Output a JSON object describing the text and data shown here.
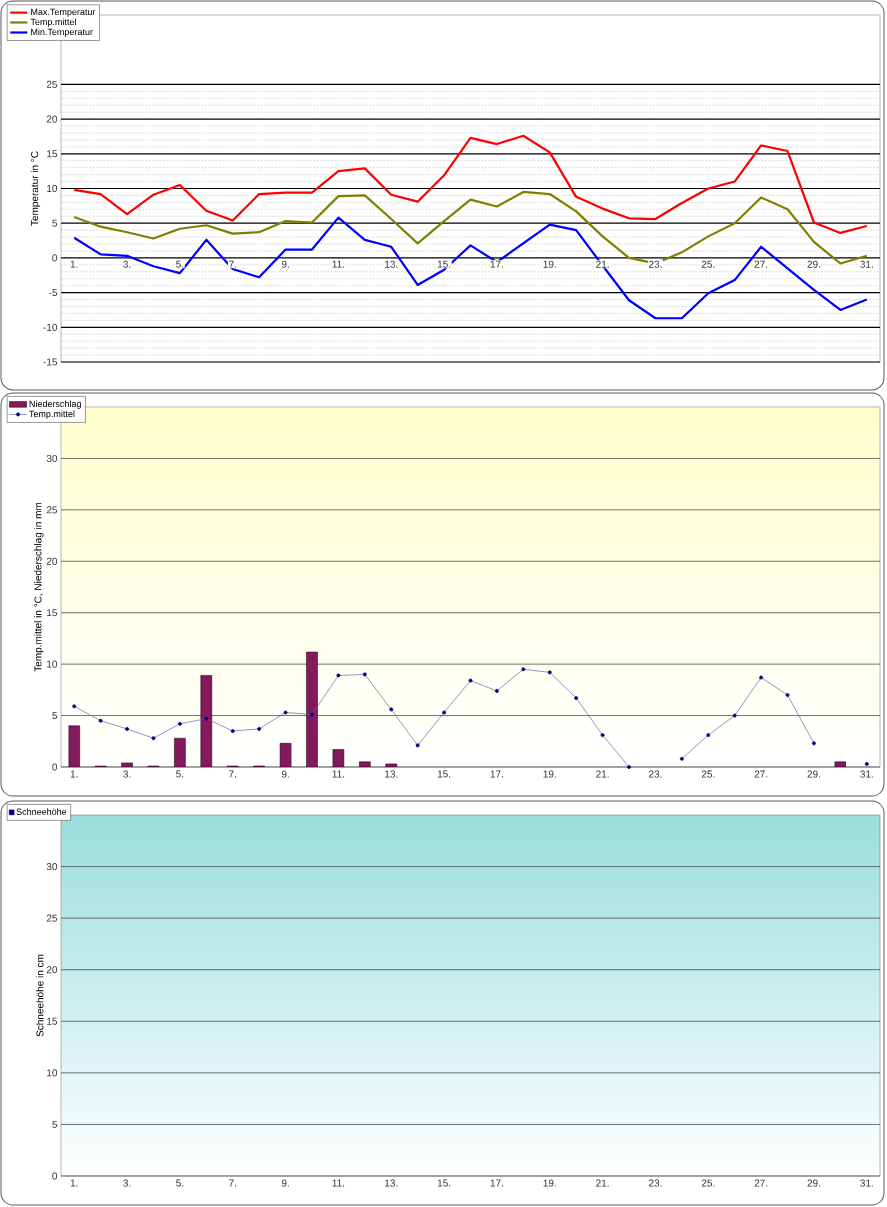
{
  "chart_data": [
    {
      "type": "line",
      "ylabel": "Temperatur  in °C",
      "categories": [
        "1.",
        null,
        "3.",
        null,
        "5.",
        null,
        "7.",
        null,
        "9.",
        null,
        "11.",
        null,
        "13.",
        null,
        "15.",
        null,
        "17.",
        null,
        "19.",
        null,
        "21.",
        null,
        "23.",
        null,
        "25.",
        null,
        "27.",
        null,
        "29.",
        null,
        "31."
      ],
      "ylim": [
        -15,
        35
      ],
      "yticks": [
        -15,
        -10,
        -5,
        0,
        5,
        10,
        15,
        20,
        25
      ],
      "grid": "y",
      "legend": "top left",
      "marker": "none",
      "series": [
        {
          "name": "Max.Temperatur",
          "color": "#ff0000",
          "values": [
            9.8,
            9.2,
            6.3,
            9.1,
            10.5,
            6.8,
            5.4,
            9.2,
            9.4,
            9.4,
            12.5,
            12.9,
            9.1,
            8.1,
            11.9,
            17.3,
            16.4,
            17.6,
            15.2,
            8.8,
            7.1,
            5.7,
            5.6,
            7.9,
            10.0,
            11.0,
            16.2,
            15.4,
            5.1,
            3.6,
            4.6
          ]
        },
        {
          "name": "Temp.mittel",
          "color": "#808000",
          "values": [
            5.9,
            4.5,
            3.7,
            2.8,
            4.2,
            4.7,
            3.5,
            3.7,
            5.3,
            5.1,
            8.9,
            9.0,
            5.6,
            2.1,
            5.3,
            8.4,
            7.4,
            9.5,
            9.2,
            6.7,
            3.1,
            0.0,
            -0.8,
            0.8,
            3.1,
            5.0,
            8.7,
            7.0,
            2.3,
            -0.8,
            0.3
          ]
        },
        {
          "name": "Min.Temperatur",
          "color": "#0000ff",
          "values": [
            2.9,
            0.5,
            0.3,
            -1.2,
            -2.2,
            2.6,
            -1.6,
            -2.8,
            1.2,
            1.2,
            5.8,
            2.6,
            1.6,
            -3.9,
            -1.7,
            1.8,
            -0.6,
            2.1,
            4.8,
            4.0,
            -1.1,
            -6.1,
            -8.7,
            -8.7,
            -5.1,
            -3.2,
            1.6,
            -1.5,
            -4.6,
            -7.5,
            -6.0
          ]
        }
      ]
    },
    {
      "type": "bar",
      "ylabel": "Temp.mittel  in °C, Niederschlag in mm",
      "categories": [
        "1.",
        null,
        "3.",
        null,
        "5.",
        null,
        "7.",
        null,
        "9.",
        null,
        "11.",
        null,
        "13.",
        null,
        "15.",
        null,
        "17.",
        null,
        "19.",
        null,
        "21.",
        null,
        "23.",
        null,
        "25.",
        null,
        "27.",
        null,
        "29.",
        null,
        "31."
      ],
      "ylim": [
        0,
        35
      ],
      "yticks": [
        0,
        5,
        10,
        15,
        20,
        25,
        30
      ],
      "grid": "y",
      "legend": "top left",
      "series": [
        {
          "name": "Niederschlag",
          "type": "bar",
          "color": "#85195e",
          "values": [
            4.0,
            0.1,
            0.4,
            0.1,
            2.8,
            8.9,
            0.1,
            0.1,
            2.3,
            11.2,
            1.7,
            0.5,
            0.3,
            null,
            null,
            null,
            null,
            null,
            null,
            null,
            null,
            null,
            null,
            null,
            null,
            null,
            null,
            null,
            null,
            0.5,
            null
          ]
        },
        {
          "name": "Temp.mittel",
          "type": "line",
          "color": "#000080",
          "marker": "circle",
          "values": [
            5.9,
            4.5,
            3.7,
            2.8,
            4.2,
            4.7,
            3.5,
            3.7,
            5.3,
            5.1,
            8.9,
            9.0,
            5.6,
            2.1,
            5.3,
            8.4,
            7.4,
            9.5,
            9.2,
            6.7,
            3.1,
            0.0,
            null,
            0.8,
            3.1,
            5.0,
            8.7,
            7.0,
            2.3,
            null,
            0.3
          ]
        }
      ]
    },
    {
      "type": "bar",
      "ylabel": "Schneehöhe in cm",
      "categories": [
        "1.",
        null,
        "3.",
        null,
        "5.",
        null,
        "7.",
        null,
        "9.",
        null,
        "11.",
        null,
        "13.",
        null,
        "15.",
        null,
        "17.",
        null,
        "19.",
        null,
        "21.",
        null,
        "23.",
        null,
        "25.",
        null,
        "27.",
        null,
        "29.",
        null,
        "31."
      ],
      "ylim": [
        0,
        35
      ],
      "yticks": [
        0,
        5,
        10,
        15,
        20,
        25,
        30
      ],
      "grid": "y",
      "legend": "top left",
      "series": [
        {
          "name": "Schneehöhe",
          "color": "#000080",
          "values": [
            null,
            null,
            null,
            null,
            null,
            null,
            null,
            null,
            null,
            null,
            null,
            null,
            null,
            null,
            null,
            null,
            null,
            null,
            null,
            null,
            null,
            null,
            null,
            null,
            null,
            null,
            null,
            null,
            null,
            null,
            null
          ]
        }
      ]
    }
  ]
}
